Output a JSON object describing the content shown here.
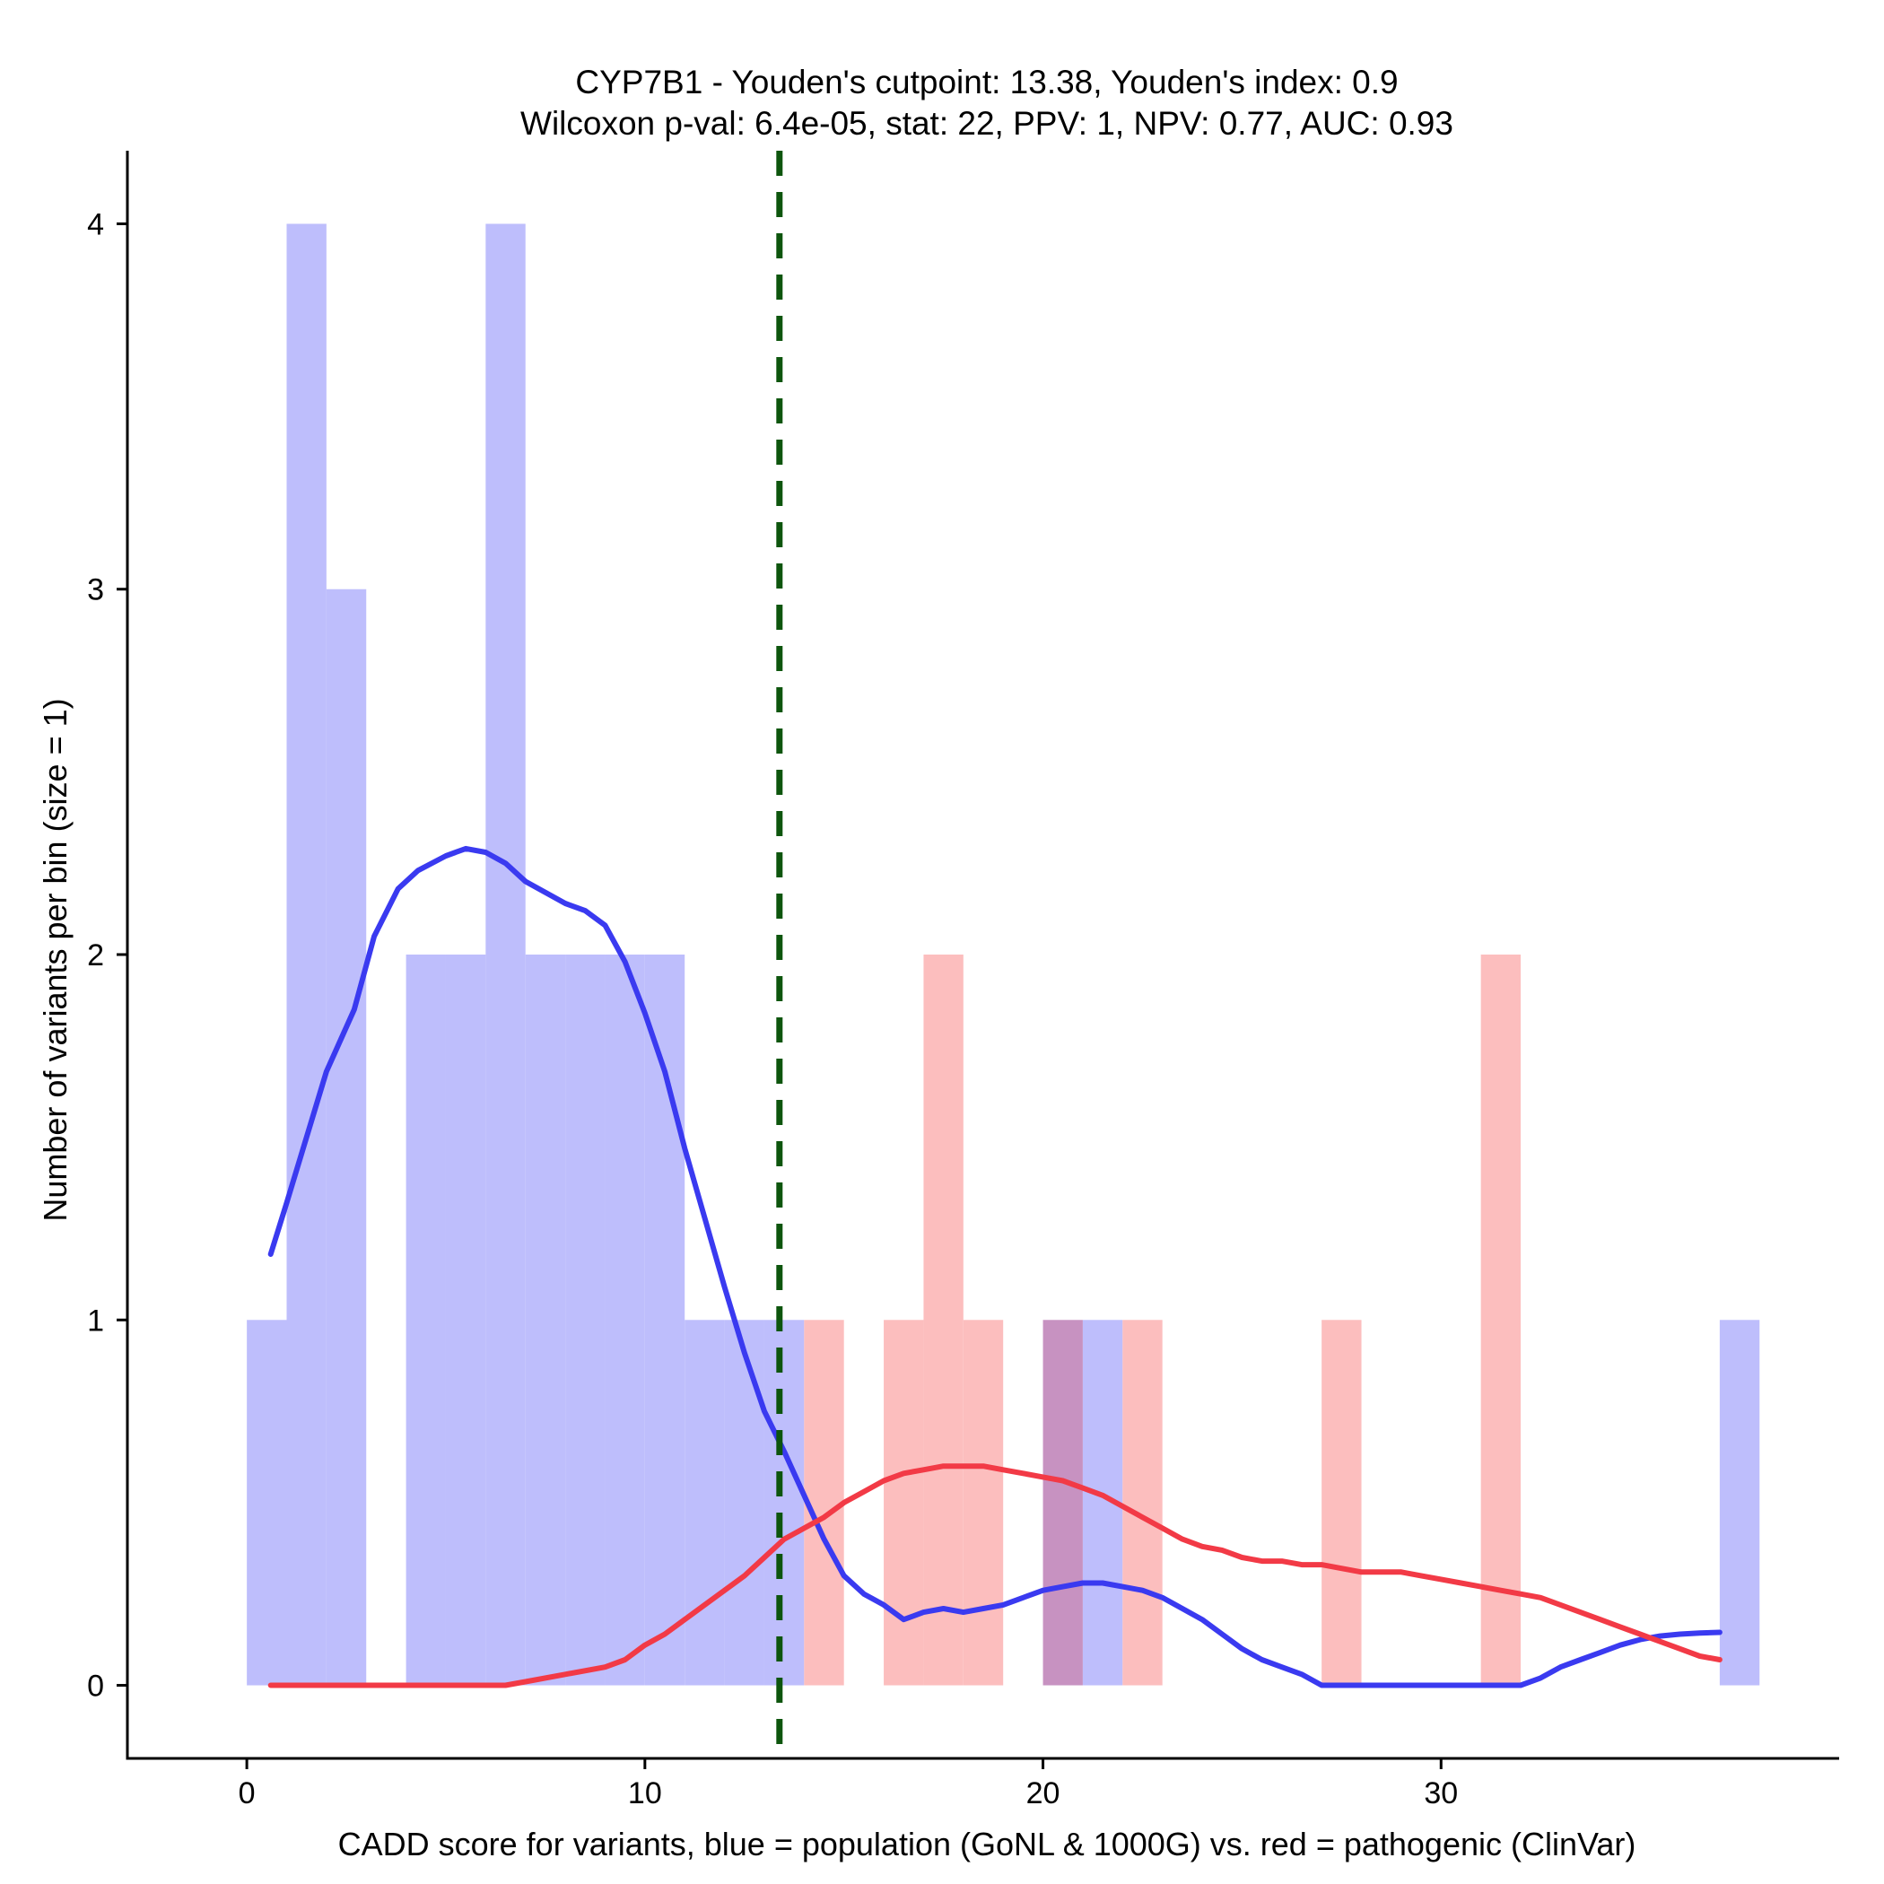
{
  "chart_data": {
    "type": "histogram",
    "title_line1": "CYP7B1 - Youden's cutpoint: 13.38, Youden's index: 0.9",
    "title_line2": "Wilcoxon p-val: 6.4e-05, stat: 22, PPV: 1, NPV: 0.77, AUC: 0.93",
    "xlabel": "CADD score for variants, blue = population (GoNL & 1000G) vs. red = pathogenic (ClinVar)",
    "ylabel": "Number of variants per bin (size = 1)",
    "xlim": [
      -3,
      40
    ],
    "ylim": [
      -0.2,
      4.2
    ],
    "x_ticks": [
      0,
      10,
      20,
      30
    ],
    "y_ticks": [
      0,
      1,
      2,
      3,
      4
    ],
    "cutpoint": 13.38,
    "bin_size": 1,
    "colors": {
      "population_fill": "#bebefc",
      "pathogenic_fill": "#fcbebe",
      "overlap_fill": "#c792c1",
      "population_line": "#3a3af0",
      "pathogenic_line": "#f23a46",
      "cutpoint_line": "#0d550d"
    },
    "series": [
      {
        "name": "population",
        "bins": [
          {
            "start": 0,
            "count": 1
          },
          {
            "start": 1,
            "count": 4
          },
          {
            "start": 2,
            "count": 3
          },
          {
            "start": 4,
            "count": 2
          },
          {
            "start": 5,
            "count": 2
          },
          {
            "start": 6,
            "count": 4
          },
          {
            "start": 7,
            "count": 2
          },
          {
            "start": 8,
            "count": 2
          },
          {
            "start": 9,
            "count": 2
          },
          {
            "start": 10,
            "count": 2
          },
          {
            "start": 11,
            "count": 1
          },
          {
            "start": 12,
            "count": 1
          },
          {
            "start": 13,
            "count": 1
          },
          {
            "start": 20,
            "count": 1
          },
          {
            "start": 21,
            "count": 1
          },
          {
            "start": 37,
            "count": 1
          }
        ],
        "density": [
          [
            0.6,
            1.18
          ],
          [
            1.0,
            1.32
          ],
          [
            1.5,
            1.5
          ],
          [
            2.0,
            1.68
          ],
          [
            2.7,
            1.85
          ],
          [
            3.2,
            2.05
          ],
          [
            3.8,
            2.18
          ],
          [
            4.3,
            2.23
          ],
          [
            5.0,
            2.27
          ],
          [
            5.5,
            2.29
          ],
          [
            6.0,
            2.28
          ],
          [
            6.5,
            2.25
          ],
          [
            7.0,
            2.2
          ],
          [
            7.5,
            2.17
          ],
          [
            8.0,
            2.14
          ],
          [
            8.5,
            2.12
          ],
          [
            9.0,
            2.08
          ],
          [
            9.5,
            1.98
          ],
          [
            10.0,
            1.84
          ],
          [
            10.5,
            1.68
          ],
          [
            11.0,
            1.47
          ],
          [
            11.5,
            1.28
          ],
          [
            12.0,
            1.09
          ],
          [
            12.5,
            0.91
          ],
          [
            13.0,
            0.75
          ],
          [
            13.5,
            0.64
          ],
          [
            14.0,
            0.52
          ],
          [
            14.5,
            0.4
          ],
          [
            15.0,
            0.3
          ],
          [
            15.5,
            0.25
          ],
          [
            16.0,
            0.22
          ],
          [
            16.5,
            0.18
          ],
          [
            17.0,
            0.2
          ],
          [
            17.5,
            0.21
          ],
          [
            18.0,
            0.2
          ],
          [
            18.5,
            0.21
          ],
          [
            19.0,
            0.22
          ],
          [
            19.5,
            0.24
          ],
          [
            20.0,
            0.26
          ],
          [
            20.5,
            0.27
          ],
          [
            21.0,
            0.28
          ],
          [
            21.5,
            0.28
          ],
          [
            22.0,
            0.27
          ],
          [
            22.5,
            0.26
          ],
          [
            23.0,
            0.24
          ],
          [
            23.5,
            0.21
          ],
          [
            24.0,
            0.18
          ],
          [
            24.5,
            0.14
          ],
          [
            25.0,
            0.1
          ],
          [
            25.5,
            0.07
          ],
          [
            26.0,
            0.05
          ],
          [
            26.5,
            0.03
          ],
          [
            27.0,
            0.0
          ],
          [
            28.0,
            0.0
          ],
          [
            29.0,
            0.0
          ],
          [
            30.0,
            0.0
          ],
          [
            31.0,
            0.0
          ],
          [
            32.0,
            0.0
          ],
          [
            32.5,
            0.02
          ],
          [
            33.0,
            0.05
          ],
          [
            33.5,
            0.07
          ],
          [
            34.0,
            0.09
          ],
          [
            34.5,
            0.11
          ],
          [
            35.0,
            0.125
          ],
          [
            35.5,
            0.135
          ],
          [
            36.0,
            0.14
          ],
          [
            36.5,
            0.143
          ],
          [
            37.0,
            0.145
          ]
        ]
      },
      {
        "name": "pathogenic",
        "bins": [
          {
            "start": 14,
            "count": 1
          },
          {
            "start": 16,
            "count": 1
          },
          {
            "start": 17,
            "count": 2
          },
          {
            "start": 18,
            "count": 1
          },
          {
            "start": 20,
            "count": 1
          },
          {
            "start": 22,
            "count": 1
          },
          {
            "start": 27,
            "count": 1
          },
          {
            "start": 31,
            "count": 2
          }
        ],
        "density": [
          [
            0.6,
            0.0
          ],
          [
            2.0,
            0.0
          ],
          [
            4.0,
            0.0
          ],
          [
            6.5,
            0.0
          ],
          [
            7.0,
            0.01
          ],
          [
            8.0,
            0.03
          ],
          [
            9.0,
            0.05
          ],
          [
            9.5,
            0.07
          ],
          [
            10.0,
            0.11
          ],
          [
            10.5,
            0.14
          ],
          [
            11.0,
            0.18
          ],
          [
            11.5,
            0.22
          ],
          [
            12.0,
            0.26
          ],
          [
            12.5,
            0.3
          ],
          [
            13.0,
            0.35
          ],
          [
            13.5,
            0.4
          ],
          [
            14.0,
            0.43
          ],
          [
            14.5,
            0.46
          ],
          [
            15.0,
            0.5
          ],
          [
            15.5,
            0.53
          ],
          [
            16.0,
            0.56
          ],
          [
            16.5,
            0.58
          ],
          [
            17.0,
            0.59
          ],
          [
            17.5,
            0.6
          ],
          [
            18.0,
            0.6
          ],
          [
            18.5,
            0.6
          ],
          [
            19.0,
            0.59
          ],
          [
            19.5,
            0.58
          ],
          [
            20.0,
            0.57
          ],
          [
            20.5,
            0.56
          ],
          [
            21.0,
            0.54
          ],
          [
            21.5,
            0.52
          ],
          [
            22.0,
            0.49
          ],
          [
            22.5,
            0.46
          ],
          [
            23.0,
            0.43
          ],
          [
            23.5,
            0.4
          ],
          [
            24.0,
            0.38
          ],
          [
            24.5,
            0.37
          ],
          [
            25.0,
            0.35
          ],
          [
            25.5,
            0.34
          ],
          [
            26.0,
            0.34
          ],
          [
            26.5,
            0.33
          ],
          [
            27.0,
            0.33
          ],
          [
            27.5,
            0.32
          ],
          [
            28.0,
            0.31
          ],
          [
            28.5,
            0.31
          ],
          [
            29.0,
            0.31
          ],
          [
            29.5,
            0.3
          ],
          [
            30.0,
            0.29
          ],
          [
            30.5,
            0.28
          ],
          [
            31.0,
            0.27
          ],
          [
            31.5,
            0.26
          ],
          [
            32.0,
            0.25
          ],
          [
            32.5,
            0.24
          ],
          [
            33.0,
            0.22
          ],
          [
            33.5,
            0.2
          ],
          [
            34.0,
            0.18
          ],
          [
            34.5,
            0.16
          ],
          [
            35.0,
            0.14
          ],
          [
            35.5,
            0.12
          ],
          [
            36.0,
            0.1
          ],
          [
            36.5,
            0.08
          ],
          [
            37.0,
            0.07
          ]
        ]
      }
    ]
  }
}
